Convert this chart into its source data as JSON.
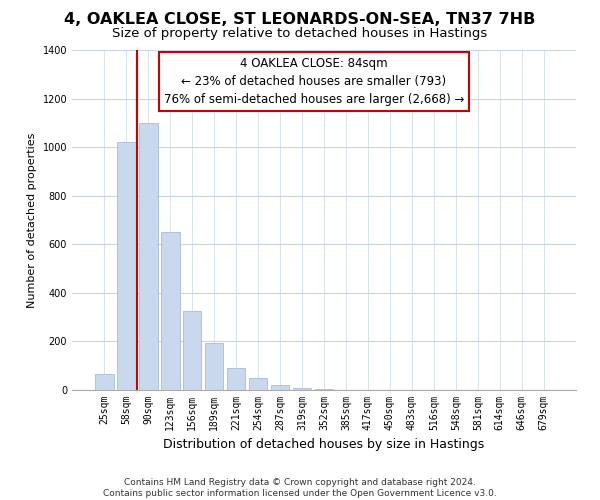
{
  "title": "4, OAKLEA CLOSE, ST LEONARDS-ON-SEA, TN37 7HB",
  "subtitle": "Size of property relative to detached houses in Hastings",
  "xlabel": "Distribution of detached houses by size in Hastings",
  "ylabel": "Number of detached properties",
  "bar_color": "#cad8ee",
  "bar_edge_color": "#9ab4d8",
  "grid_color": "#c8d4e8",
  "background_color": "#ffffff",
  "tick_labels": [
    "25sqm",
    "58sqm",
    "90sqm",
    "123sqm",
    "156sqm",
    "189sqm",
    "221sqm",
    "254sqm",
    "287sqm",
    "319sqm",
    "352sqm",
    "385sqm",
    "417sqm",
    "450sqm",
    "483sqm",
    "516sqm",
    "548sqm",
    "581sqm",
    "614sqm",
    "646sqm",
    "679sqm"
  ],
  "bar_values": [
    65,
    1020,
    1100,
    650,
    325,
    192,
    90,
    48,
    20,
    10,
    5,
    0,
    0,
    0,
    0,
    0,
    0,
    0,
    0,
    0,
    0
  ],
  "ylim": [
    0,
    1400
  ],
  "yticks": [
    0,
    200,
    400,
    600,
    800,
    1000,
    1200,
    1400
  ],
  "vline_color": "#cc0000",
  "vline_position": 1.5,
  "annotation_box_text": "4 OAKLEA CLOSE: 84sqm\n← 23% of detached houses are smaller (793)\n76% of semi-detached houses are larger (2,668) →",
  "footer_text": "Contains HM Land Registry data © Crown copyright and database right 2024.\nContains public sector information licensed under the Open Government Licence v3.0.",
  "title_fontsize": 11.5,
  "subtitle_fontsize": 9.5,
  "xlabel_fontsize": 9,
  "ylabel_fontsize": 8,
  "tick_fontsize": 7,
  "annotation_fontsize": 8.5,
  "footer_fontsize": 6.5
}
